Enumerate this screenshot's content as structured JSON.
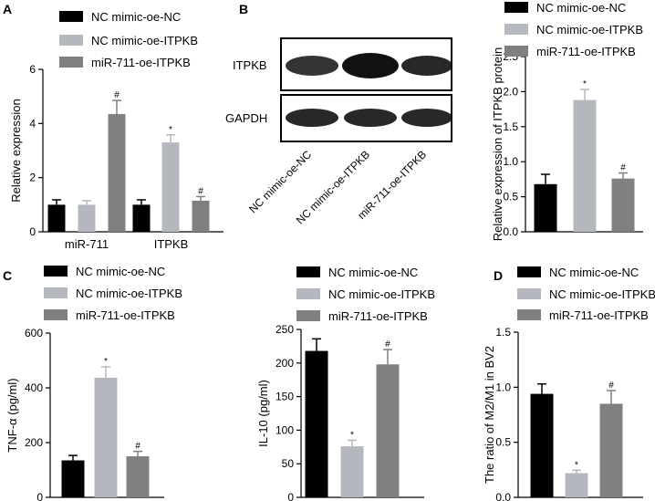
{
  "panel_letters": {
    "A": "A",
    "B": "B",
    "C": "C",
    "D": "D"
  },
  "colors": {
    "nc": "#000000",
    "itpkb": "#b4b7bd",
    "mir": "#7f8181"
  },
  "legend_entries": [
    "NC mimic-oe-NC",
    "NC mimic-oe-ITPKB",
    "miR-711-oe-ITPKB"
  ],
  "blot": {
    "rows": [
      "ITPKB",
      "GAPDH"
    ],
    "lanes": [
      "NC mimic-oe-NC",
      "NC mimic-oe-ITPKB",
      "miR-711-oe-ITPKB"
    ]
  },
  "chart_data": [
    {
      "panel": "A",
      "type": "bar",
      "categories": [
        "miR-711",
        "ITPKB"
      ],
      "series": [
        {
          "name": "NC mimic-oe-NC",
          "values": [
            1.0,
            1.0
          ],
          "errors": [
            0.18,
            0.18
          ],
          "marks": [
            "",
            ""
          ]
        },
        {
          "name": "NC mimic-oe-ITPKB",
          "values": [
            1.0,
            3.3
          ],
          "errors": [
            0.15,
            0.28
          ],
          "marks": [
            "",
            "*"
          ]
        },
        {
          "name": "miR-711-oe-ITPKB",
          "values": [
            4.35,
            1.15
          ],
          "errors": [
            0.5,
            0.15
          ],
          "marks": [
            "#",
            "#"
          ]
        }
      ],
      "ylabel": "Relative expression",
      "xlabel": "",
      "ylim": [
        0,
        6
      ],
      "yticks": [
        "0",
        "2",
        "4",
        "6"
      ],
      "legend": "top"
    },
    {
      "panel": "B",
      "type": "bar",
      "categories": [
        ""
      ],
      "series": [
        {
          "name": "NC mimic-oe-NC",
          "values": [
            0.68
          ],
          "errors": [
            0.14
          ],
          "marks": [
            ""
          ]
        },
        {
          "name": "NC mimic-oe-ITPKB",
          "values": [
            1.88
          ],
          "errors": [
            0.15
          ],
          "marks": [
            "*"
          ]
        },
        {
          "name": "miR-711-oe-ITPKB",
          "values": [
            0.76
          ],
          "errors": [
            0.08
          ],
          "marks": [
            "#"
          ]
        }
      ],
      "ylabel": "Relative expression of ITPKB protein",
      "xlabel": "",
      "ylim": [
        0,
        2.5
      ],
      "yticks": [
        "0.0",
        "0.5",
        "1.0",
        "1.5",
        "2.0",
        "2.5"
      ],
      "legend": "top"
    },
    {
      "panel": "C-left",
      "type": "bar",
      "categories": [
        ""
      ],
      "series": [
        {
          "name": "NC mimic-oe-NC",
          "values": [
            135
          ],
          "errors": [
            18
          ],
          "marks": [
            ""
          ]
        },
        {
          "name": "NC mimic-oe-ITPKB",
          "values": [
            437
          ],
          "errors": [
            40
          ],
          "marks": [
            "*"
          ]
        },
        {
          "name": "miR-711-oe-ITPKB",
          "values": [
            150
          ],
          "errors": [
            18
          ],
          "marks": [
            "#"
          ]
        }
      ],
      "ylabel": "TNF-α (pg/ml)",
      "xlabel": "",
      "ylim": [
        0,
        600
      ],
      "yticks": [
        "0",
        "200",
        "400",
        "600"
      ],
      "legend": "top"
    },
    {
      "panel": "C-right",
      "type": "bar",
      "categories": [
        ""
      ],
      "series": [
        {
          "name": "NC mimic-oe-NC",
          "values": [
            218
          ],
          "errors": [
            18
          ],
          "marks": [
            ""
          ]
        },
        {
          "name": "NC mimic-oe-ITPKB",
          "values": [
            76
          ],
          "errors": [
            9
          ],
          "marks": [
            "*"
          ]
        },
        {
          "name": "miR-711-oe-ITPKB",
          "values": [
            198
          ],
          "errors": [
            22
          ],
          "marks": [
            "#"
          ]
        }
      ],
      "ylabel": "IL-10 (pg/ml)",
      "xlabel": "",
      "ylim": [
        0,
        250
      ],
      "yticks": [
        "0",
        "50",
        "100",
        "150",
        "200",
        "250"
      ],
      "legend": "top"
    },
    {
      "panel": "D",
      "type": "bar",
      "categories": [
        ""
      ],
      "series": [
        {
          "name": "NC mimic-oe-NC",
          "values": [
            0.94
          ],
          "errors": [
            0.09
          ],
          "marks": [
            ""
          ]
        },
        {
          "name": "NC mimic-oe-ITPKB",
          "values": [
            0.22
          ],
          "errors": [
            0.025
          ],
          "marks": [
            "*"
          ]
        },
        {
          "name": "miR-711-oe-ITPKB",
          "values": [
            0.85
          ],
          "errors": [
            0.12
          ],
          "marks": [
            "#"
          ]
        }
      ],
      "ylabel": "The ratio of M2/M1 in BV2",
      "xlabel": "",
      "ylim": [
        0,
        1.5
      ],
      "yticks": [
        "0.0",
        "0.5",
        "1.0",
        "1.5"
      ],
      "legend": "top"
    }
  ]
}
